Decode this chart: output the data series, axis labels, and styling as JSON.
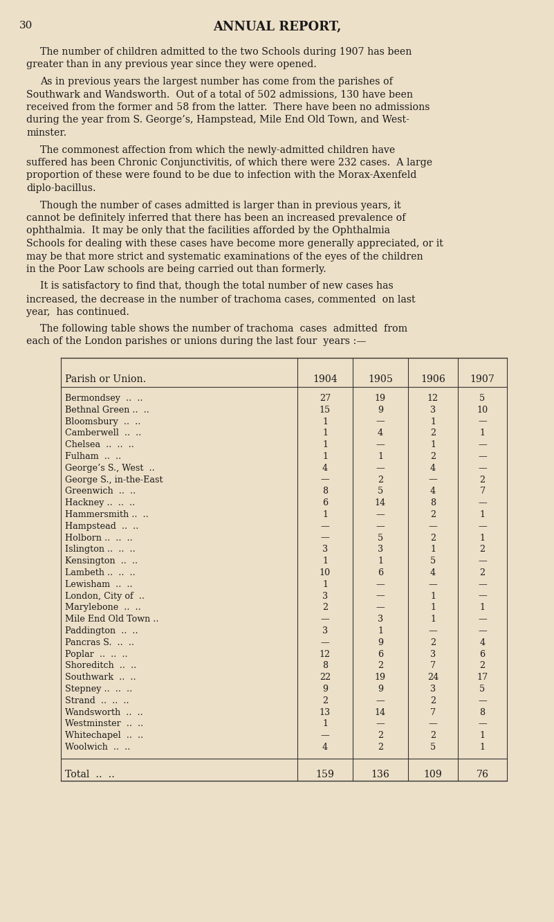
{
  "page_number": "30",
  "title": "ANNUAL REPORT,",
  "bg_color": "#ede0c8",
  "text_color": "#1a1a1a",
  "table_header": [
    "Parish or Union.",
    "1904",
    "1905",
    "1906",
    "1907"
  ],
  "table_rows": [
    [
      "Bermondsey  ..  ..",
      "27",
      "19",
      "12",
      "5"
    ],
    [
      "Bethnal Green ..  ..",
      "15",
      "9",
      "3",
      "10"
    ],
    [
      "Bloomsbury  ..  ..",
      "1",
      "—",
      "1",
      "—"
    ],
    [
      "Camberwell  ..  ..",
      "1",
      "4",
      "2",
      "1"
    ],
    [
      "Chelsea  ..  ..  ..",
      "1",
      "—",
      "1",
      "—"
    ],
    [
      "Fulham  ..  ..",
      "1",
      "1",
      "2",
      "—"
    ],
    [
      "George’s S., West  ..",
      "4",
      "—",
      "4",
      "—"
    ],
    [
      "George S., in-the-East",
      "—",
      "2",
      "—",
      "2"
    ],
    [
      "Greenwich  ..  ..",
      "8",
      "5",
      "4",
      "7"
    ],
    [
      "Hackney ..  ..  ..",
      "6",
      "14",
      "8",
      "—"
    ],
    [
      "Hammersmith ..  ..",
      "1",
      "—",
      "2",
      "1"
    ],
    [
      "Hampstead  ..  ..",
      "—",
      "—",
      "—",
      "—"
    ],
    [
      "Holborn ..  ..  ..",
      "—",
      "5",
      "2",
      "1"
    ],
    [
      "Islington ..  ..  ..",
      "3",
      "3",
      "1",
      "2"
    ],
    [
      "Kensington  ..  ..",
      "1",
      "1",
      "5",
      "—"
    ],
    [
      "Lambeth ..  ..  ..",
      "10",
      "6",
      "4",
      "2"
    ],
    [
      "Lewisham  ..  ..",
      "1",
      "—",
      "—",
      "—"
    ],
    [
      "London, City of  ..",
      "3",
      "—",
      "1",
      "—"
    ],
    [
      "Marylebone  ..  ..",
      "2",
      "—",
      "1",
      "1"
    ],
    [
      "Mile End Old Town ..",
      "—",
      "3",
      "1",
      "—"
    ],
    [
      "Paddington  ..  ..",
      "3",
      "1",
      "—",
      "—"
    ],
    [
      "Pancras S.  ..  ..",
      "—",
      "9",
      "2",
      "4"
    ],
    [
      "Poplar  ..  ..  ..",
      "12",
      "6",
      "3",
      "6"
    ],
    [
      "Shoreditch  ..  ..",
      "8",
      "2",
      "7",
      "2"
    ],
    [
      "Southwark  ..  ..",
      "22",
      "19",
      "24",
      "17"
    ],
    [
      "Stepney ..  ..  ..",
      "9",
      "9",
      "3",
      "5"
    ],
    [
      "Strand  ..  ..  ..",
      "2",
      "—",
      "2",
      "—"
    ],
    [
      "Wandsworth  ..  ..",
      "13",
      "14",
      "7",
      "8"
    ],
    [
      "Westminster  ..  ..",
      "1",
      "—",
      "—",
      "—"
    ],
    [
      "Whitechapel  ..  ..",
      "—",
      "2",
      "2",
      "1"
    ],
    [
      "Woolwich  ..  ..",
      "4",
      "2",
      "5",
      "1"
    ]
  ],
  "table_total": [
    "Total  ..  ..",
    "159",
    "136",
    "109",
    "76"
  ]
}
